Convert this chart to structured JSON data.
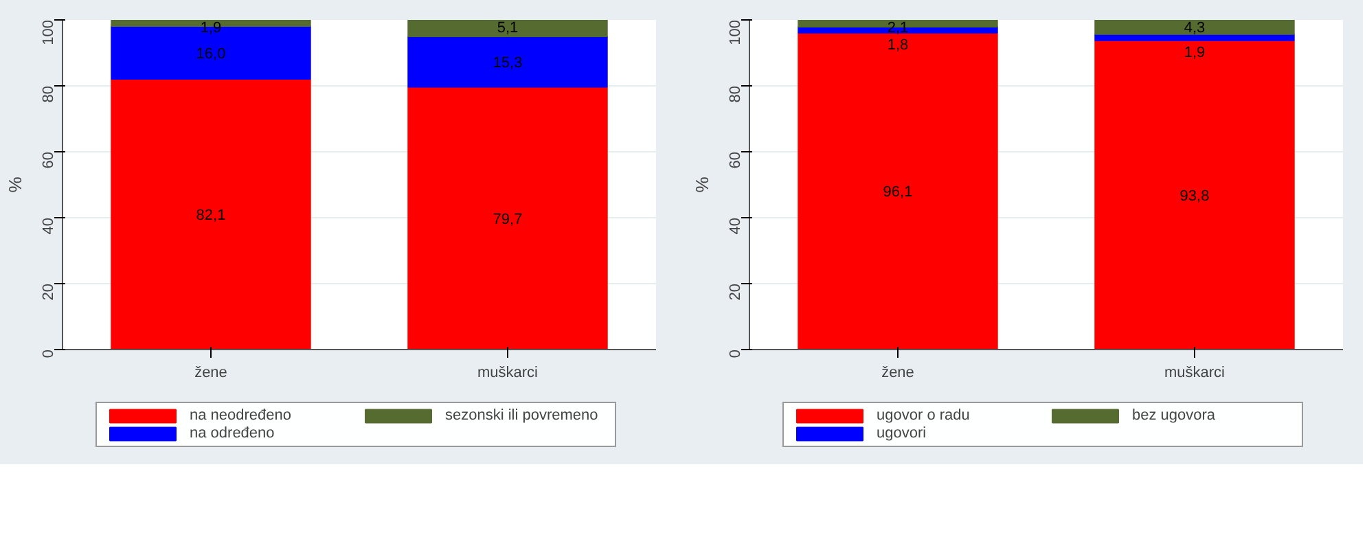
{
  "chart_data": [
    {
      "type": "bar",
      "stacked": true,
      "ylabel": "%",
      "categories": [
        "žene",
        "muškarci"
      ],
      "ylim": [
        0,
        100
      ],
      "yticks": [
        0,
        20,
        40,
        60,
        80,
        100
      ],
      "grid": "y",
      "legend": "bottom",
      "series": [
        {
          "name": "na neodređeno",
          "color": "#ff0000",
          "values": [
            82.1,
            79.7
          ],
          "value_labels": [
            "82,1",
            "79,7"
          ]
        },
        {
          "name": "na određeno",
          "color": "#0000ff",
          "values": [
            16.0,
            15.3
          ],
          "value_labels": [
            "16,0",
            "15,3"
          ]
        },
        {
          "name": "sezonski ili povremeno",
          "color": "#556b2f",
          "values": [
            1.9,
            5.1
          ],
          "value_labels": [
            "1,9",
            "5,1"
          ]
        }
      ]
    },
    {
      "type": "bar",
      "stacked": true,
      "ylabel": "%",
      "categories": [
        "žene",
        "muškarci"
      ],
      "ylim": [
        0,
        100
      ],
      "yticks": [
        0,
        20,
        40,
        60,
        80,
        100
      ],
      "grid": "y",
      "legend": "bottom",
      "series": [
        {
          "name": "ugovor o radu",
          "color": "#ff0000",
          "values": [
            96.1,
            93.8
          ],
          "value_labels": [
            "96,1",
            "93,8"
          ]
        },
        {
          "name": "ugovori",
          "color": "#0000ff",
          "values": [
            1.8,
            1.9
          ],
          "value_labels": [
            "1,8",
            "1,9"
          ]
        },
        {
          "name": "bez ugovora",
          "color": "#556b2f",
          "values": [
            2.1,
            4.3
          ],
          "value_labels": [
            "2,1",
            "4,3"
          ]
        }
      ]
    }
  ]
}
